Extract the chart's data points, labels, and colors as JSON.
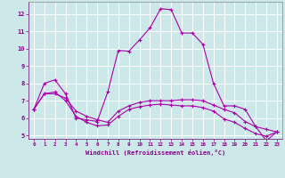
{
  "bg_color": "#cce8e8",
  "grid_color": "#ffffff",
  "line_color": "#aa00aa",
  "xlabel": "Windchill (Refroidissement éolien,°C)",
  "xlim": [
    -0.5,
    23.5
  ],
  "ylim": [
    4.8,
    12.7
  ],
  "yticks": [
    5,
    6,
    7,
    8,
    9,
    10,
    11,
    12
  ],
  "xticks": [
    0,
    1,
    2,
    3,
    4,
    5,
    6,
    7,
    8,
    9,
    10,
    11,
    12,
    13,
    14,
    15,
    16,
    17,
    18,
    19,
    20,
    21,
    22,
    23
  ],
  "series1_x": [
    0,
    1,
    2,
    3,
    4,
    5,
    6,
    7,
    8,
    9,
    10,
    11,
    12,
    13,
    14,
    15,
    16,
    17,
    18,
    19,
    20,
    21,
    22,
    23
  ],
  "series1_y": [
    6.5,
    8.0,
    8.2,
    7.4,
    6.0,
    5.9,
    5.8,
    7.5,
    9.9,
    9.85,
    10.5,
    11.2,
    12.3,
    12.25,
    10.9,
    10.9,
    10.25,
    8.0,
    6.7,
    6.7,
    6.5,
    5.5,
    4.7,
    5.2
  ],
  "series2_x": [
    0,
    1,
    2,
    3,
    4,
    5,
    6,
    7,
    8,
    9,
    10,
    11,
    12,
    13,
    14,
    15,
    16,
    17,
    18,
    19,
    20,
    21,
    22,
    23
  ],
  "series2_y": [
    6.5,
    7.4,
    7.4,
    7.15,
    6.4,
    6.1,
    5.9,
    5.75,
    6.4,
    6.7,
    6.9,
    7.0,
    7.0,
    7.0,
    7.05,
    7.05,
    7.0,
    6.75,
    6.5,
    6.3,
    5.8,
    5.5,
    5.35,
    5.2
  ],
  "series3_x": [
    0,
    1,
    2,
    3,
    4,
    5,
    6,
    7,
    8,
    9,
    10,
    11,
    12,
    13,
    14,
    15,
    16,
    17,
    18,
    19,
    20,
    21,
    22,
    23
  ],
  "series3_y": [
    6.5,
    7.4,
    7.5,
    7.0,
    6.1,
    5.75,
    5.55,
    5.6,
    6.1,
    6.5,
    6.65,
    6.75,
    6.8,
    6.75,
    6.7,
    6.7,
    6.6,
    6.4,
    5.95,
    5.75,
    5.4,
    5.1,
    4.95,
    5.2
  ]
}
